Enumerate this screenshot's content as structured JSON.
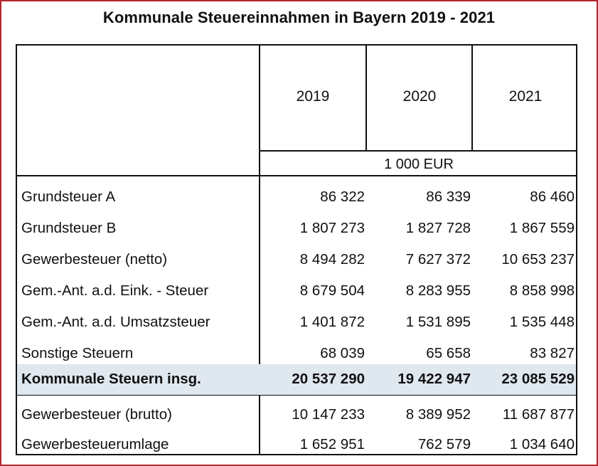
{
  "title": "Kommunale Steuereinnahmen in Bayern 2019 - 2021",
  "table": {
    "years": [
      "2019",
      "2020",
      "2021"
    ],
    "unit": "1 000 EUR",
    "rows": [
      {
        "label": "Grundsteuer A",
        "values": [
          "86 322",
          "86 339",
          "86 460"
        ]
      },
      {
        "label": "Grundsteuer B",
        "values": [
          "1 807 273",
          "1 827 728",
          "1 867 559"
        ]
      },
      {
        "label": "Gewerbesteuer (netto)",
        "values": [
          "8 494 282",
          "7 627 372",
          "10 653 237"
        ]
      },
      {
        "label": "Gem.-Ant. a.d. Eink. - Steuer",
        "values": [
          "8 679 504",
          "8 283 955",
          "8 858 998"
        ]
      },
      {
        "label": "Gem.-Ant. a.d. Umsatzsteuer",
        "values": [
          "1 401 872",
          "1 531 895",
          "1 535 448"
        ]
      },
      {
        "label": "Sonstige Steuern",
        "values": [
          "68 039",
          "65 658",
          "83 827"
        ]
      }
    ],
    "total": {
      "label": "Kommunale Steuern insg.",
      "values": [
        "20 537 290",
        "19 422 947",
        "23 085 529"
      ]
    },
    "extra_rows": [
      {
        "label": "Gewerbesteuer (brutto)",
        "values": [
          "10 147 233",
          "8 389 952",
          "11 687 877"
        ]
      },
      {
        "label": "Gewerbesteuerumlage",
        "values": [
          "1 652 951",
          "762 579",
          "1 034 640"
        ]
      }
    ]
  },
  "colors": {
    "frame": "#b3262b",
    "total_row": "#dfe7ef"
  }
}
